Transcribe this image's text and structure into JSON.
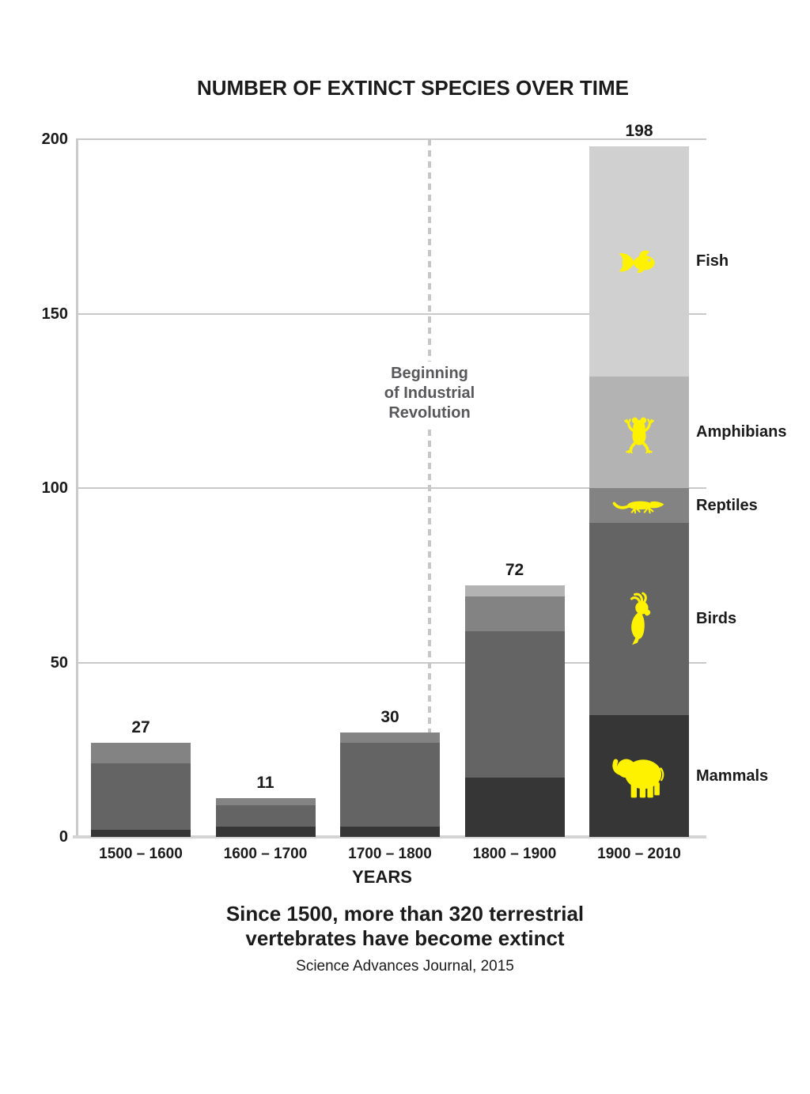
{
  "page": {
    "caption_lines": [
      "Since 1500, more than 320 terrestrial",
      "vertebrates have become extinct"
    ],
    "source": "Science Advances Journal, 2015"
  },
  "chart_data": {
    "type": "bar",
    "stacked": true,
    "title": "NUMBER OF EXTINCT SPECIES OVER TIME",
    "xlabel": "YEARS",
    "ylabel": "",
    "ylim": [
      0,
      200
    ],
    "yticks": [
      0,
      50,
      100,
      150,
      200
    ],
    "grid": true,
    "legend_position": "right-of-last-bar",
    "categories": [
      "1500 – 1600",
      "1600 – 1700",
      "1700 – 1800",
      "1800 – 1900",
      "1900 – 2010"
    ],
    "totals": [
      27,
      11,
      30,
      72,
      198
    ],
    "series": [
      {
        "name": "Mammals",
        "icon": "elephant-icon",
        "color": "#363636",
        "values": [
          2,
          3,
          3,
          17,
          35
        ]
      },
      {
        "name": "Birds",
        "icon": "cockatoo-icon",
        "color": "#646464",
        "values": [
          19,
          6,
          24,
          42,
          55
        ]
      },
      {
        "name": "Reptiles",
        "icon": "lizard-icon",
        "color": "#838383",
        "values": [
          6,
          2,
          3,
          10,
          10
        ]
      },
      {
        "name": "Amphibians",
        "icon": "frog-icon",
        "color": "#b3b3b3",
        "values": [
          0,
          0,
          0,
          3,
          32
        ]
      },
      {
        "name": "Fish",
        "icon": "fish-icon",
        "color": "#d0d0d0",
        "values": [
          0,
          0,
          0,
          0,
          66
        ]
      }
    ],
    "annotation": {
      "lines": [
        "Beginning",
        "of Industrial",
        "Revolution"
      ],
      "between_categories": [
        "1700 – 1800",
        "1800 – 1900"
      ]
    },
    "icon_color": "#fff200",
    "grid_color": "#c9c9c9"
  }
}
